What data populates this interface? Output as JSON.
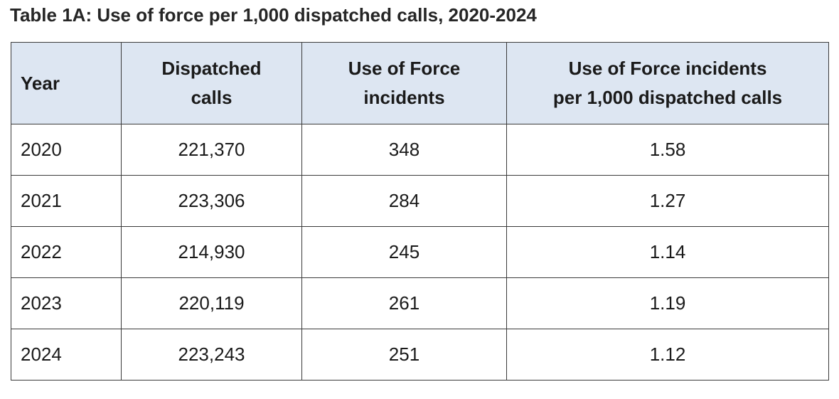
{
  "title": "Table 1A: Use of force per 1,000 dispatched calls, 2020-2024",
  "header": {
    "year": "Year",
    "dispatched_line1": "Dispatched",
    "dispatched_line2": "calls",
    "uof_line1": "Use of Force",
    "uof_line2": "incidents",
    "rate_line1": "Use of Force incidents",
    "rate_line2": "per 1,000 dispatched calls"
  },
  "rows": [
    {
      "year": "2020",
      "dispatched": "221,370",
      "incidents": "348",
      "rate": "1.58"
    },
    {
      "year": "2021",
      "dispatched": "223,306",
      "incidents": "284",
      "rate": "1.27"
    },
    {
      "year": "2022",
      "dispatched": "214,930",
      "incidents": "245",
      "rate": "1.14"
    },
    {
      "year": "2023",
      "dispatched": "220,119",
      "incidents": "261",
      "rate": "1.19"
    },
    {
      "year": "2024",
      "dispatched": "223,243",
      "incidents": "251",
      "rate": "1.12"
    }
  ],
  "colors": {
    "header_background": "#dde6f2",
    "border": "#3a3a3a",
    "text": "#1a1a1a"
  }
}
